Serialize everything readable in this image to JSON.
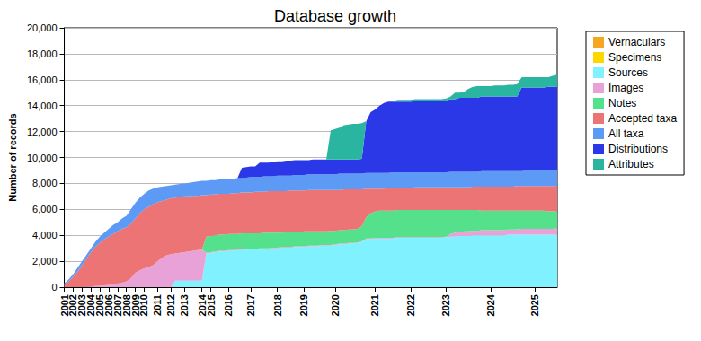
{
  "chart_data": {
    "type": "area",
    "title": "Database growth",
    "ylabel": "Number of records",
    "stacked": true,
    "grid": true,
    "legend": "right",
    "categories": [
      "2001",
      null,
      "2002",
      null,
      "2003",
      null,
      "2004",
      null,
      "2005",
      null,
      "2006",
      null,
      "2007",
      null,
      "2008",
      null,
      "2009",
      null,
      "2010",
      null,
      null,
      "2011",
      null,
      null,
      "2012",
      null,
      null,
      "2013",
      null,
      null,
      null,
      "2014",
      null,
      "2015",
      null,
      null,
      null,
      "2016",
      null,
      null,
      null,
      null,
      "2017",
      null,
      null,
      null,
      null,
      null,
      "2018",
      null,
      null,
      null,
      null,
      null,
      "2019",
      null,
      null,
      null,
      null,
      null,
      null,
      "2020",
      null,
      null,
      null,
      null,
      null,
      null,
      null,
      null,
      "2021",
      null,
      null,
      null,
      null,
      null,
      null,
      null,
      "2022",
      null,
      null,
      null,
      null,
      null,
      null,
      null,
      "2023",
      null,
      null,
      null,
      null,
      null,
      null,
      null,
      null,
      null,
      "2024",
      null,
      null,
      null,
      null,
      null,
      null,
      null,
      null,
      null,
      "2025",
      null,
      null,
      null,
      null,
      null
    ],
    "ylim": [
      0,
      20000
    ],
    "yticks": [
      0,
      {
        "value": 2000,
        "label": "2,000"
      },
      {
        "value": 4000,
        "label": "4,000"
      },
      {
        "value": 6000,
        "label": "6,000"
      },
      {
        "value": 8000,
        "label": "8,000"
      },
      {
        "value": 10000,
        "label": "10,000"
      },
      {
        "value": 12000,
        "label": "12,000"
      },
      {
        "value": 14000,
        "label": "14,000"
      },
      {
        "value": 16000,
        "label": "16,000"
      },
      {
        "value": 18000,
        "label": "18,000"
      },
      {
        "value": 20000,
        "label": "20,000"
      }
    ],
    "series": [
      {
        "name": "Vernaculars",
        "color": "#f5a623",
        "values": [
          0,
          0,
          0,
          0,
          0,
          0,
          0,
          0,
          0,
          0,
          0,
          0,
          0,
          0,
          0,
          0,
          0,
          0,
          0,
          0,
          0,
          0,
          0,
          0,
          0,
          0,
          0,
          0,
          0,
          0,
          0,
          0,
          0,
          0,
          0,
          0,
          0,
          0,
          0,
          0,
          0,
          0,
          0,
          0,
          0,
          0,
          0,
          0,
          0,
          0,
          0,
          0,
          0,
          0,
          0,
          0,
          0,
          0,
          0,
          0,
          0,
          0,
          0,
          0,
          0,
          0,
          0,
          0,
          0,
          0,
          0,
          0,
          0,
          0,
          0,
          0,
          0,
          0,
          0,
          0,
          0,
          0,
          0,
          0,
          0,
          0,
          0,
          0,
          0,
          0,
          0,
          0,
          0,
          0,
          0,
          0,
          0,
          0,
          0,
          0,
          0,
          0,
          0,
          0,
          0,
          0,
          0,
          0,
          0,
          0,
          0,
          0
        ]
      },
      {
        "name": "Specimens",
        "color": "#ffd700",
        "values": [
          0,
          0,
          0,
          0,
          0,
          0,
          0,
          0,
          0,
          0,
          0,
          0,
          0,
          0,
          0,
          0,
          0,
          0,
          0,
          0,
          0,
          0,
          0,
          0,
          0,
          0,
          0,
          0,
          0,
          0,
          0,
          0,
          0,
          0,
          0,
          0,
          0,
          0,
          0,
          0,
          0,
          0,
          0,
          0,
          0,
          0,
          0,
          0,
          0,
          0,
          0,
          0,
          0,
          0,
          0,
          0,
          0,
          0,
          0,
          0,
          0,
          0,
          0,
          0,
          0,
          0,
          0,
          0,
          0,
          0,
          0,
          0,
          0,
          0,
          0,
          0,
          0,
          0,
          0,
          0,
          0,
          0,
          0,
          0,
          0,
          0,
          0,
          0,
          0,
          0,
          0,
          0,
          0,
          0,
          0,
          0,
          0,
          0,
          0,
          0,
          0,
          0,
          0,
          0,
          0,
          0,
          0,
          0,
          0,
          0,
          0,
          0
        ]
      },
      {
        "name": "Sources",
        "color": "#80f2ff",
        "values": [
          0,
          0,
          0,
          0,
          0,
          0,
          0,
          0,
          0,
          0,
          0,
          0,
          0,
          0,
          0,
          0,
          0,
          0,
          0,
          0,
          0,
          0,
          0,
          0,
          0,
          500,
          500,
          500,
          500,
          500,
          500,
          500,
          2600,
          2650,
          2700,
          2750,
          2750,
          2800,
          2800,
          2850,
          2850,
          2900,
          2900,
          2900,
          2950,
          2950,
          2950,
          3000,
          3000,
          3050,
          3050,
          3050,
          3100,
          3100,
          3100,
          3150,
          3150,
          3150,
          3200,
          3200,
          3200,
          3250,
          3300,
          3300,
          3350,
          3350,
          3400,
          3500,
          3700,
          3700,
          3750,
          3750,
          3750,
          3750,
          3750,
          3800,
          3800,
          3800,
          3800,
          3800,
          3800,
          3800,
          3800,
          3800,
          3800,
          3800,
          3850,
          3900,
          3900,
          3950,
          3950,
          3950,
          4000,
          4000,
          4000,
          4000,
          4000,
          4000,
          4000,
          4000,
          4050,
          4050,
          4050,
          4050,
          4050,
          4050,
          4050,
          4050,
          4050,
          4050,
          4050,
          4050
        ]
      },
      {
        "name": "Images",
        "color": "#e8a2d8",
        "values": [
          0,
          0,
          0,
          10,
          20,
          30,
          50,
          80,
          100,
          130,
          170,
          220,
          280,
          350,
          450,
          700,
          1100,
          1300,
          1450,
          1550,
          1700,
          2000,
          2250,
          2450,
          2550,
          2100,
          2150,
          2200,
          2250,
          2300,
          2350,
          2400,
          50,
          50,
          50,
          50,
          50,
          50,
          50,
          50,
          50,
          50,
          50,
          50,
          50,
          50,
          50,
          50,
          50,
          50,
          50,
          50,
          50,
          50,
          50,
          50,
          50,
          50,
          50,
          50,
          50,
          50,
          50,
          50,
          50,
          50,
          50,
          50,
          50,
          50,
          50,
          50,
          50,
          50,
          50,
          50,
          50,
          50,
          50,
          50,
          50,
          50,
          50,
          50,
          50,
          50,
          50,
          200,
          300,
          300,
          350,
          350,
          350,
          350,
          400,
          400,
          400,
          400,
          400,
          400,
          400,
          400,
          400,
          450,
          450,
          450,
          450,
          450,
          450,
          450,
          450,
          500
        ]
      },
      {
        "name": "Notes",
        "color": "#55e08c",
        "values": [
          0,
          0,
          0,
          0,
          0,
          0,
          0,
          0,
          0,
          0,
          0,
          0,
          0,
          0,
          0,
          0,
          0,
          0,
          0,
          0,
          0,
          0,
          0,
          0,
          0,
          0,
          0,
          0,
          0,
          0,
          0,
          0,
          1250,
          1250,
          1250,
          1250,
          1250,
          1250,
          1250,
          1200,
          1250,
          1200,
          1200,
          1200,
          1150,
          1200,
          1200,
          1150,
          1150,
          1100,
          1150,
          1150,
          1100,
          1100,
          1150,
          1100,
          1100,
          1100,
          1050,
          1050,
          1100,
          1050,
          1050,
          1050,
          1050,
          1050,
          1050,
          1150,
          1650,
          1950,
          2050,
          2100,
          2100,
          2100,
          2100,
          2100,
          2100,
          2100,
          2100,
          2100,
          2100,
          2100,
          2100,
          2100,
          2100,
          2100,
          2050,
          1850,
          1750,
          1700,
          1650,
          1650,
          1600,
          1600,
          1500,
          1500,
          1500,
          1500,
          1500,
          1500,
          1450,
          1450,
          1450,
          1400,
          1400,
          1400,
          1400,
          1400,
          1400,
          1350,
          1350,
          1300
        ]
      },
      {
        "name": "Accepted taxa",
        "color": "#ec7474",
        "values": [
          200,
          450,
          800,
          1190,
          1680,
          2170,
          2650,
          3020,
          3300,
          3570,
          3730,
          3880,
          4020,
          4150,
          4150,
          4200,
          4200,
          4400,
          4550,
          4650,
          4700,
          4550,
          4400,
          4300,
          4300,
          4300,
          4300,
          4300,
          4250,
          4250,
          4200,
          4200,
          3200,
          3200,
          3150,
          3150,
          3150,
          3100,
          3150,
          3150,
          3150,
          3150,
          3150,
          3200,
          3200,
          3150,
          3200,
          3200,
          3200,
          3200,
          3150,
          3200,
          3200,
          3200,
          3150,
          3200,
          3200,
          3200,
          3200,
          3200,
          3150,
          3150,
          3100,
          3150,
          3100,
          3100,
          3050,
          2850,
          2200,
          1900,
          1750,
          1700,
          1700,
          1750,
          1750,
          1700,
          1700,
          1700,
          1700,
          1750,
          1750,
          1750,
          1750,
          1750,
          1750,
          1750,
          1750,
          1750,
          1750,
          1750,
          1750,
          1750,
          1800,
          1800,
          1850,
          1850,
          1850,
          1850,
          1850,
          1850,
          1850,
          1850,
          1900,
          1900,
          1900,
          1900,
          1900,
          1900,
          1900,
          1950,
          1950,
          1950
        ]
      },
      {
        "name": "All taxa",
        "color": "#5c9af5",
        "values": [
          100,
          150,
          200,
          300,
          300,
          300,
          300,
          400,
          500,
          500,
          600,
          700,
          700,
          800,
          900,
          1100,
          1200,
          1200,
          1200,
          1250,
          1200,
          1150,
          1100,
          1050,
          1000,
          1000,
          1000,
          1000,
          1050,
          1050,
          1100,
          1100,
          1100,
          1100,
          1100,
          1100,
          1100,
          1100,
          1100,
          1150,
          1100,
          1150,
          1200,
          1150,
          1150,
          1200,
          1150,
          1150,
          1200,
          1200,
          1200,
          1150,
          1200,
          1200,
          1200,
          1200,
          1200,
          1200,
          1200,
          1200,
          1200,
          1200,
          1250,
          1200,
          1200,
          1200,
          1200,
          1200,
          1200,
          1200,
          1200,
          1200,
          1200,
          1150,
          1200,
          1200,
          1200,
          1200,
          1200,
          1150,
          1150,
          1150,
          1150,
          1150,
          1150,
          1150,
          1150,
          1200,
          1200,
          1200,
          1200,
          1200,
          1150,
          1150,
          1200,
          1200,
          1200,
          1200,
          1200,
          1200,
          1200,
          1200,
          1150,
          1150,
          1200,
          1200,
          1200,
          1200,
          1200,
          1200,
          1200,
          1200
        ]
      },
      {
        "name": "Distributions",
        "color": "#2b38e8",
        "values": [
          0,
          0,
          0,
          0,
          0,
          0,
          0,
          0,
          0,
          0,
          0,
          0,
          0,
          0,
          0,
          0,
          0,
          0,
          0,
          0,
          0,
          0,
          0,
          0,
          0,
          0,
          0,
          0,
          0,
          0,
          0,
          0,
          0,
          0,
          0,
          0,
          0,
          0,
          0,
          0,
          800,
          800,
          800,
          800,
          1100,
          1050,
          1050,
          1100,
          1100,
          1100,
          1150,
          1150,
          1150,
          1150,
          1150,
          1100,
          1150,
          1150,
          1150,
          1150,
          1150,
          1150,
          1100,
          1100,
          1100,
          1100,
          1100,
          1150,
          4000,
          4700,
          4900,
          5200,
          5400,
          5500,
          5450,
          5450,
          5450,
          5450,
          5450,
          5500,
          5500,
          5500,
          5500,
          5500,
          5500,
          5500,
          5550,
          5600,
          5600,
          5700,
          5700,
          5700,
          5700,
          5700,
          5750,
          5750,
          5750,
          5750,
          5750,
          5750,
          5750,
          5750,
          5750,
          6450,
          6400,
          6400,
          6400,
          6400,
          6400,
          6450,
          6450,
          6450
        ]
      },
      {
        "name": "Attributes",
        "color": "#2ab5a0",
        "values": [
          0,
          0,
          0,
          0,
          0,
          0,
          0,
          0,
          0,
          0,
          0,
          0,
          0,
          0,
          0,
          0,
          0,
          0,
          0,
          0,
          0,
          0,
          0,
          0,
          0,
          0,
          0,
          0,
          0,
          0,
          0,
          0,
          0,
          0,
          0,
          0,
          0,
          0,
          0,
          0,
          0,
          0,
          0,
          0,
          0,
          0,
          0,
          0,
          0,
          0,
          0,
          0,
          0,
          0,
          0,
          0,
          0,
          0,
          0,
          0,
          2250,
          2350,
          2450,
          2650,
          2700,
          2750,
          2750,
          2750,
          0,
          0,
          0,
          0,
          0,
          0,
          0,
          150,
          150,
          150,
          150,
          150,
          150,
          150,
          150,
          150,
          150,
          150,
          150,
          200,
          500,
          400,
          450,
          700,
          850,
          900,
          800,
          800,
          800,
          850,
          850,
          850,
          900,
          900,
          950,
          800,
          800,
          800,
          800,
          800,
          800,
          750,
          850,
          950
        ]
      }
    ]
  }
}
